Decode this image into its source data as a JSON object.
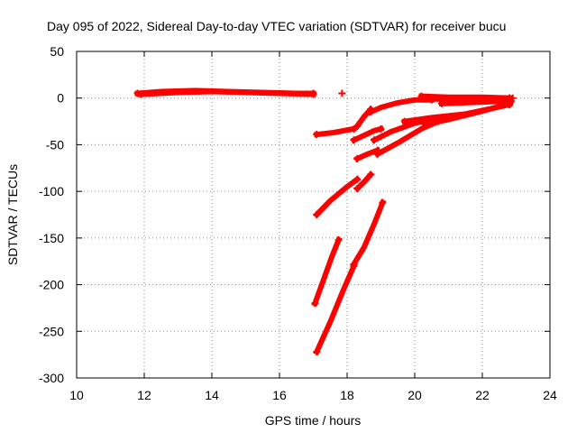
{
  "chart_data": {
    "type": "scatter",
    "title": "Day 095 of 2022, Sidereal Day-to-day VTEC variation (SDTVAR) for receiver bucu",
    "xlabel": "GPS time / hours",
    "ylabel": "SDTVAR / TECUs",
    "xlim": [
      10,
      24
    ],
    "ylim": [
      -300,
      50
    ],
    "xticks": [
      "10",
      "12",
      "14",
      "16",
      "18",
      "20",
      "22",
      "24"
    ],
    "yticks": [
      "50",
      "0",
      "-50",
      "-100",
      "-150",
      "-200",
      "-250",
      "-300"
    ],
    "grid": true,
    "marker": "plus",
    "color": "#ff0000",
    "tracks": [
      {
        "x": [
          11.8,
          12.5,
          13.5,
          14.5,
          15.5,
          16.5,
          17.0
        ],
        "y": [
          5,
          7,
          8,
          7,
          6,
          5,
          5
        ]
      },
      {
        "x": [
          11.9,
          13.0,
          14.0,
          15.0,
          16.0,
          17.0
        ],
        "y": [
          4,
          6,
          7,
          6,
          5,
          4
        ]
      },
      {
        "x": [
          17.1,
          17.6,
          18.2
        ],
        "y": [
          -39,
          -37,
          -33
        ]
      },
      {
        "x": [
          17.1,
          17.5,
          18.0,
          18.3
        ],
        "y": [
          -125,
          -110,
          -95,
          -87
        ]
      },
      {
        "x": [
          17.05,
          17.3,
          17.55,
          17.75
        ],
        "y": [
          -220,
          -195,
          -170,
          -152
        ]
      },
      {
        "x": [
          17.1,
          17.5,
          17.9,
          18.2
        ],
        "y": [
          -272,
          -240,
          -205,
          -180
        ]
      },
      {
        "x": [
          18.2,
          18.5,
          18.8,
          19.05
        ],
        "y": [
          -178,
          -160,
          -135,
          -112
        ]
      },
      {
        "x": [
          18.3,
          18.5,
          18.7
        ],
        "y": [
          -97,
          -90,
          -82
        ]
      },
      {
        "x": [
          18.3,
          18.5,
          18.7
        ],
        "y": [
          -30,
          -20,
          -12
        ]
      },
      {
        "x": [
          18.2,
          18.5,
          18.8,
          19.0
        ],
        "y": [
          -45,
          -40,
          -35,
          -33
        ]
      },
      {
        "x": [
          18.3,
          18.6,
          18.9
        ],
        "y": [
          -65,
          -60,
          -56
        ]
      },
      {
        "x": [
          18.7,
          19.0,
          19.5,
          20.0,
          20.5
        ],
        "y": [
          -15,
          -10,
          -5,
          -2,
          -2
        ]
      },
      {
        "x": [
          18.8,
          19.3,
          20.0,
          20.6
        ],
        "y": [
          -45,
          -36,
          -27,
          -22
        ]
      },
      {
        "x": [
          18.9,
          19.5,
          20.2,
          20.7
        ],
        "y": [
          -60,
          -48,
          -33,
          -25
        ]
      },
      {
        "x": [
          19.7,
          20.5,
          21.5,
          22.3,
          22.8
        ],
        "y": [
          -25,
          -21,
          -17,
          -11,
          -7
        ]
      },
      {
        "x": [
          20.3,
          21.0,
          22.0,
          22.8
        ],
        "y": [
          -28,
          -23,
          -14,
          -6
        ]
      },
      {
        "x": [
          20.3,
          21.0,
          22.0,
          22.8
        ],
        "y": [
          -1,
          -1,
          -1,
          0
        ]
      },
      {
        "x": [
          20.8,
          21.5,
          22.2,
          22.85
        ],
        "y": [
          -6,
          -5,
          -4,
          -3
        ]
      },
      {
        "x": [
          20.2,
          21.0,
          22.0,
          22.8
        ],
        "y": [
          2,
          1,
          1,
          0
        ]
      }
    ],
    "points": [
      {
        "x": 17.85,
        "y": 5
      },
      {
        "x": 22.9,
        "y": 0
      }
    ]
  }
}
